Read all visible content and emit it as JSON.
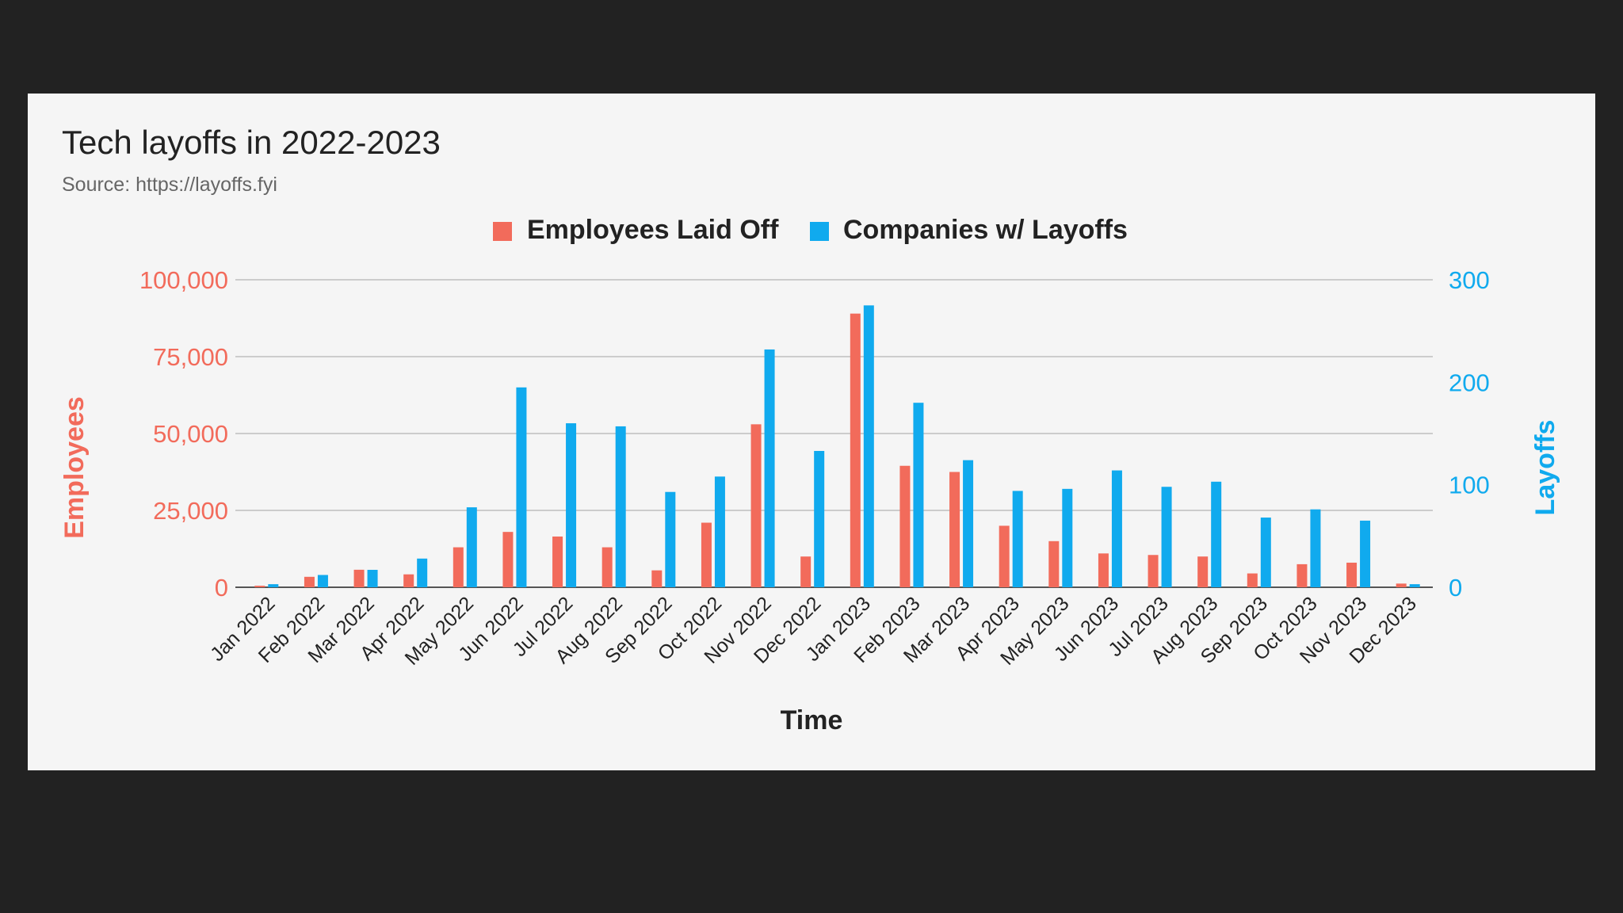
{
  "chart_data": {
    "type": "bar",
    "title": "Tech layoffs in 2022-2023",
    "subtitle": "Source: https://layoffs.fyi",
    "xlabel": "Time",
    "ylabel_left": "Employees",
    "ylabel_right": "Layoffs",
    "legend_position": "top-center",
    "grid": true,
    "categories": [
      "Jan 2022",
      "Feb 2022",
      "Mar 2022",
      "Apr 2022",
      "May 2022",
      "Jun 2022",
      "Jul 2022",
      "Aug 2022",
      "Sep 2022",
      "Oct 2022",
      "Nov 2022",
      "Dec 2022",
      "Jan 2023",
      "Feb 2023",
      "Mar 2023",
      "Apr 2023",
      "May 2023",
      "Jun 2023",
      "Jul 2023",
      "Aug 2023",
      "Sep 2023",
      "Oct 2023",
      "Nov 2023",
      "Dec 2023"
    ],
    "series": [
      {
        "name": "Employees Laid Off",
        "axis": "left",
        "color": "#f26b5b",
        "values": [
          500,
          3400,
          5700,
          4200,
          13000,
          18000,
          16500,
          13000,
          5500,
          21000,
          53000,
          10000,
          89000,
          39500,
          37500,
          20000,
          15000,
          11000,
          10500,
          10000,
          4500,
          7500,
          8000,
          1200
        ]
      },
      {
        "name": "Companies w/ Layoffs",
        "axis": "right",
        "color": "#10aaee",
        "values": [
          3,
          12,
          17,
          28,
          78,
          195,
          160,
          157,
          93,
          108,
          232,
          133,
          275,
          180,
          124,
          94,
          96,
          114,
          98,
          103,
          68,
          76,
          65,
          3
        ]
      }
    ],
    "ylim_left": [
      0,
      100000
    ],
    "ylim_right": [
      0,
      300
    ],
    "yticks_left": [
      "0",
      "25,000",
      "50,000",
      "75,000",
      "100,000"
    ],
    "yticks_right": [
      "0",
      "100",
      "200",
      "300"
    ],
    "left_axis_color": "#f26b5b",
    "right_axis_color": "#10aaee"
  }
}
